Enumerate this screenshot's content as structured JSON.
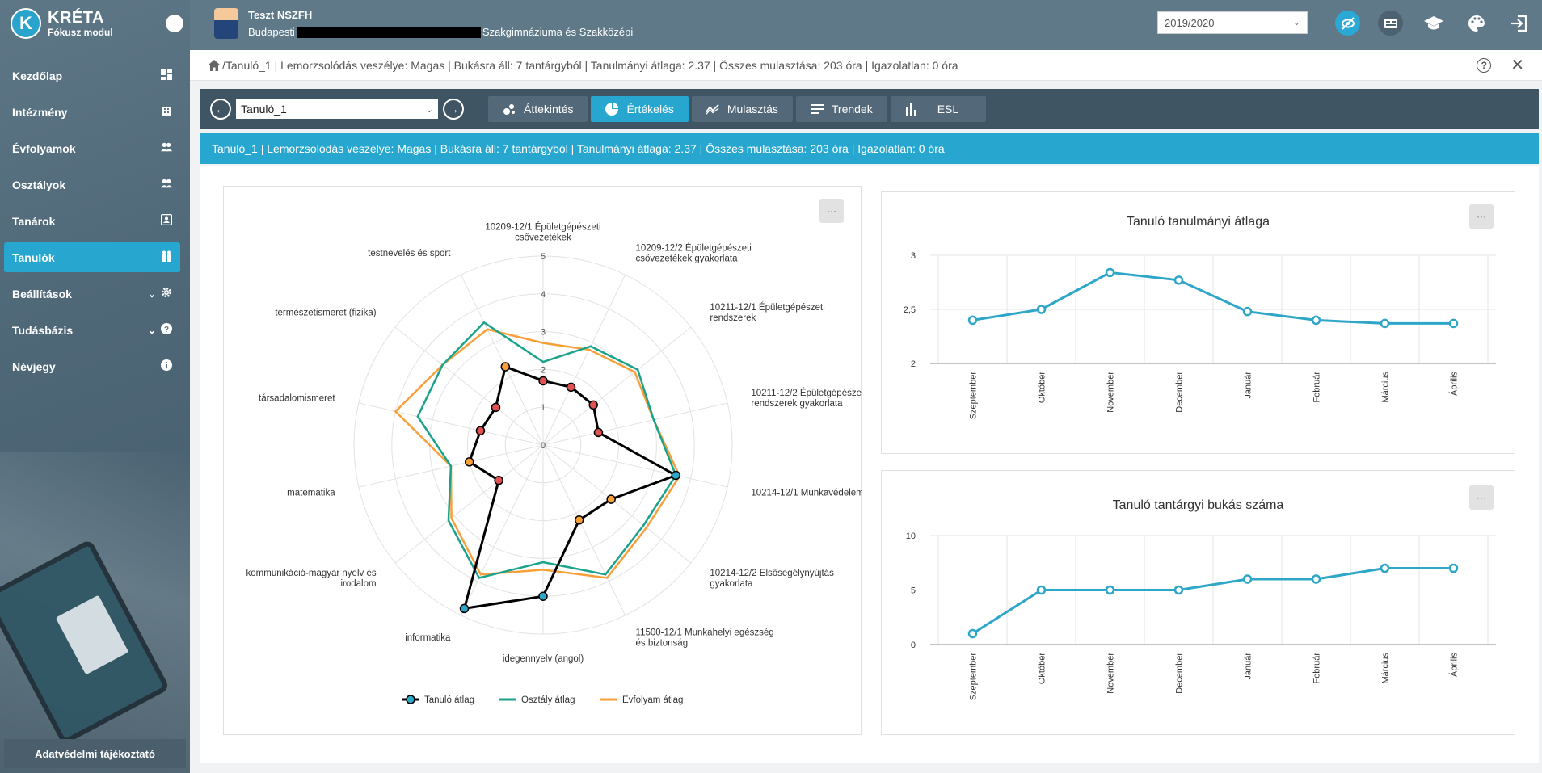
{
  "app": {
    "title": "KRÉTA",
    "subtitle": "Fókusz modul"
  },
  "user": {
    "name": "Teszt NSZFH",
    "school_prefix": "Budapesti",
    "school_suffix": "Szakgimnáziuma és Szakközépi"
  },
  "year_select": {
    "value": "2019/2020"
  },
  "sidebar": {
    "items": [
      {
        "label": "Kezdőlap",
        "icon": "dashboard-icon"
      },
      {
        "label": "Intézmény",
        "icon": "building-icon"
      },
      {
        "label": "Évfolyamok",
        "icon": "users-icon"
      },
      {
        "label": "Osztályok",
        "icon": "users-icon"
      },
      {
        "label": "Tanárok",
        "icon": "id-card-icon"
      },
      {
        "label": "Tanulók",
        "icon": "students-icon"
      },
      {
        "label": "Beállítások",
        "icon": "gear-icon"
      },
      {
        "label": "Tudásbázis",
        "icon": "help-icon"
      },
      {
        "label": "Névjegy",
        "icon": "info-icon"
      }
    ],
    "privacy": "Adatvédelmi tájékoztató"
  },
  "breadcrumb": {
    "text": "/Tanuló_1 | Lemorzsolódás veszélye: Magas | Bukásra áll: 7 tantárgyból | Tanulmányi átlaga: 2.37 | Összes mulasztása: 203 óra | Igazolatlan: 0 óra"
  },
  "toolbar": {
    "student": "Tanuló_1",
    "tabs": [
      "Áttekintés",
      "Értékelés",
      "Mulasztás",
      "Trendek",
      "ESL"
    ],
    "active_tab": "Értékelés"
  },
  "infobar": {
    "text": "Tanuló_1 | Lemorzsolódás veszélye: Magas | Bukásra áll: 7 tantárgyból | Tanulmányi átlaga: 2.37 | Összes mulasztása: 203 óra | Igazolatlan: 0 óra"
  },
  "colors": {
    "accent": "#27a7cf",
    "student": "#000000",
    "class": "#1aa38a",
    "grade": "#f7a03a",
    "line": "#2ea6c8"
  },
  "chart_data": [
    {
      "type": "radar",
      "categories": [
        "10209-12/1 Épületgépészeti csővezetékek",
        "10209-12/2 Épületgépészeti csővezetékek gyakorlata",
        "10211-12/1 Épületgépészeti rendszerek",
        "10211-12/2 Épületgépésze rendszerek gyakorlata",
        "10214-12/1 Munkavédelem",
        "10214-12/2 Elsősegélynyújtás gyakorlata",
        "11500-12/1 Munkahelyi egészség és biztonság",
        "idegennyelv (angol)",
        "informatika",
        "kommunikáció-magyar nyelv és irodalom",
        "matematika",
        "társadalomismeret",
        "természetismeret (fizika)",
        "testnevelés és sport"
      ],
      "tick_labels": [
        "0",
        "1",
        "2",
        "3",
        "4",
        "5"
      ],
      "rlim": [
        0,
        5
      ],
      "series": [
        {
          "name": "Tanuló átlag",
          "values": [
            1.7,
            1.7,
            1.7,
            1.5,
            3.6,
            2.3,
            2.2,
            4.0,
            4.8,
            1.5,
            2.0,
            1.7,
            1.6,
            2.3
          ]
        },
        {
          "name": "Osztály átlag",
          "values": [
            2.2,
            2.9,
            3.2,
            3.0,
            3.6,
            3.4,
            3.8,
            3.1,
            3.9,
            3.2,
            2.5,
            3.4,
            3.4,
            3.6
          ]
        },
        {
          "name": "Évfolyam átlag",
          "values": [
            2.7,
            2.8,
            3.1,
            3.0,
            3.7,
            3.5,
            3.9,
            3.3,
            3.8,
            3.1,
            2.5,
            4.0,
            3.4,
            3.4
          ]
        }
      ],
      "legend": "bottom"
    },
    {
      "type": "line",
      "title": "Tanuló tanulmányi átlaga",
      "categories": [
        "Szeptember",
        "Október",
        "November",
        "December",
        "Január",
        "Február",
        "Március",
        "Április"
      ],
      "values": [
        2.4,
        2.5,
        2.84,
        2.77,
        2.48,
        2.4,
        2.37,
        2.37
      ],
      "y_ticks": [
        "2",
        "2,5",
        "3"
      ],
      "ylim": [
        2,
        3
      ]
    },
    {
      "type": "line",
      "title": "Tanuló tantárgyi bukás száma",
      "categories": [
        "Szeptember",
        "Október",
        "November",
        "December",
        "Január",
        "Február",
        "Március",
        "Április"
      ],
      "values": [
        1,
        5,
        5,
        5,
        6,
        6,
        7,
        7
      ],
      "y_ticks": [
        "0",
        "5",
        "10"
      ],
      "ylim": [
        0,
        10
      ]
    }
  ]
}
